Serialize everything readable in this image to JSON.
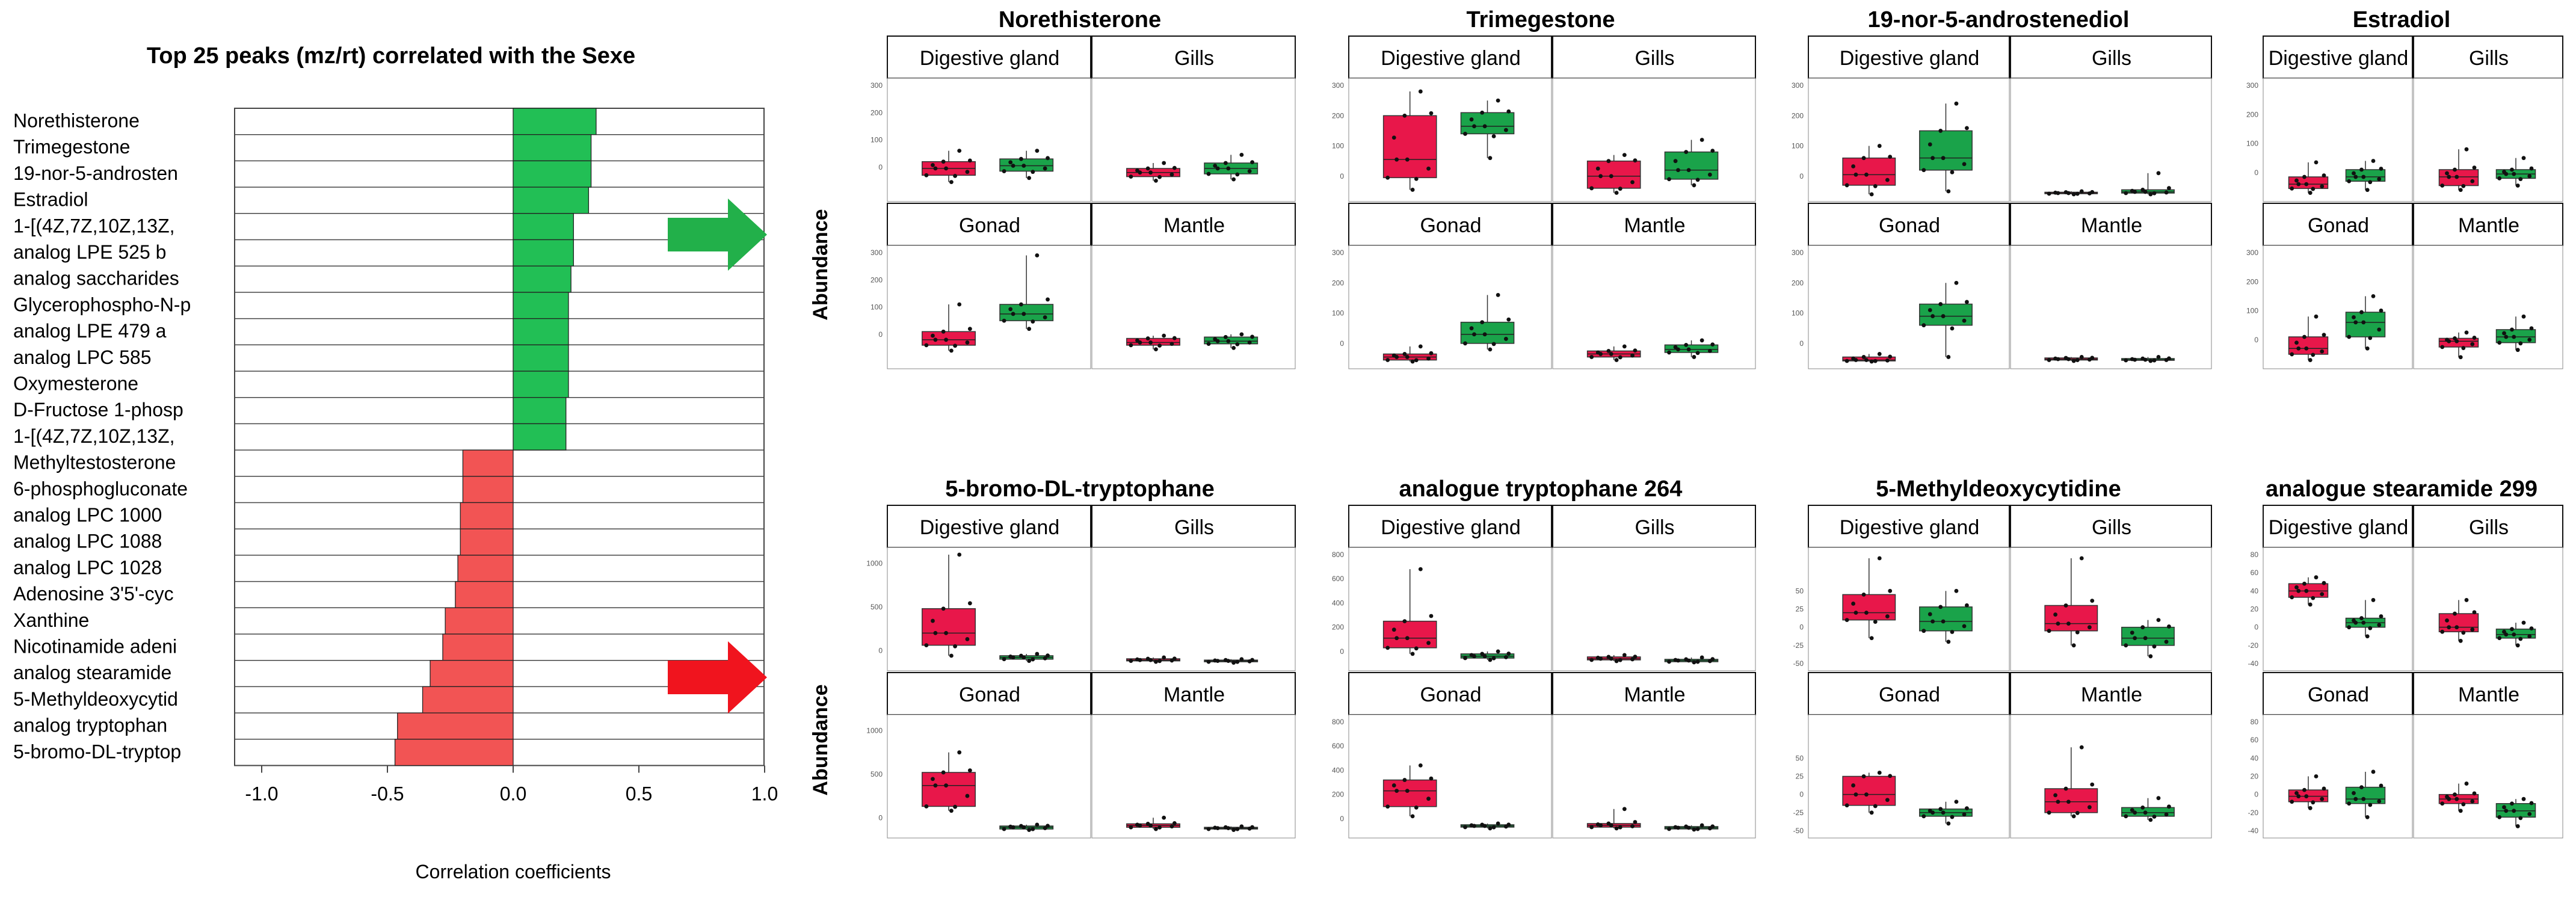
{
  "figure": {
    "ylabel": "Abundance",
    "group_colors": {
      "female": "#e8174a",
      "male": "#1aa34a"
    },
    "arrow_colors": {
      "up": "#22b04a",
      "down": "#f0141e"
    }
  },
  "chart_data": [
    {
      "type": "bar",
      "orientation": "horizontal",
      "title": "Top 25 peaks (mz/rt) correlated with the Sexe",
      "xlabel": "Correlation coefficients",
      "xlim": [
        -1.0,
        1.0
      ],
      "xticks": [
        "-1.0",
        "-0.5",
        "0.0",
        "0.5",
        "1.0"
      ],
      "colors": {
        "positive": "#22bf55",
        "negative": "#f25454"
      },
      "categories": [
        "Norethisterone",
        "Trimegestone",
        "19-nor-5-androsten",
        "Estradiol",
        "1-[(4Z,7Z,10Z,13Z,",
        "analog LPE 525 b",
        "analog saccharides",
        "Glycerophospho-N-p",
        "analog LPE 479 a",
        "analog LPC 585",
        "Oxymesterone",
        "D-Fructose 1-phosp",
        "1-[(4Z,7Z,10Z,13Z,",
        "Methyltestosterone",
        "6-phosphogluconate",
        "analog LPC 1000",
        "analog LPC 1088",
        "analog LPC 1028",
        "Adenosine 3'5'-cyc",
        "Xanthine",
        "Nicotinamide adeni",
        "analog stearamide",
        "5-Methyldeoxycytid",
        "analog tryptophan",
        "5-bromo-DL-tryptop"
      ],
      "values": [
        0.33,
        0.31,
        0.31,
        0.3,
        0.24,
        0.24,
        0.23,
        0.22,
        0.22,
        0.22,
        0.22,
        0.21,
        0.21,
        -0.2,
        -0.2,
        -0.21,
        -0.21,
        -0.22,
        -0.23,
        -0.27,
        -0.28,
        -0.33,
        -0.36,
        -0.46,
        -0.47
      ]
    },
    {
      "type": "box",
      "title": "Norethisterone",
      "ylim": [
        -100,
        300
      ],
      "yticks": [
        0,
        100,
        200,
        300
      ],
      "panels": [
        "Digestive gland",
        "Gills",
        "Gonad",
        "Mantle"
      ],
      "series": [
        {
          "panel": "Digestive gland",
          "group": "female",
          "q1": -30,
          "median": -5,
          "q3": 20,
          "lo": -55,
          "hi": 60
        },
        {
          "panel": "Digestive gland",
          "group": "male",
          "q1": -15,
          "median": 5,
          "q3": 30,
          "lo": -40,
          "hi": 60
        },
        {
          "panel": "Gills",
          "group": "female",
          "q1": -35,
          "median": -20,
          "q3": -5,
          "lo": -50,
          "hi": 15
        },
        {
          "panel": "Gills",
          "group": "male",
          "q1": -25,
          "median": -5,
          "q3": 15,
          "lo": -45,
          "hi": 45
        },
        {
          "panel": "Gonad",
          "group": "female",
          "q1": -40,
          "median": -20,
          "q3": 10,
          "lo": -60,
          "hi": 110
        },
        {
          "panel": "Gonad",
          "group": "male",
          "q1": 50,
          "median": 75,
          "q3": 110,
          "lo": 20,
          "hi": 290
        },
        {
          "panel": "Mantle",
          "group": "female",
          "q1": -40,
          "median": -30,
          "q3": -15,
          "lo": -55,
          "hi": -5
        },
        {
          "panel": "Mantle",
          "group": "male",
          "q1": -35,
          "median": -25,
          "q3": -10,
          "lo": -50,
          "hi": 0
        }
      ]
    },
    {
      "type": "box",
      "title": "Trimegestone",
      "ylim": [
        -60,
        300
      ],
      "yticks": [
        0,
        100,
        200,
        300
      ],
      "panels": [
        "Digestive gland",
        "Gills",
        "Gonad",
        "Mantle"
      ],
      "series": [
        {
          "panel": "Digestive gland",
          "group": "female",
          "q1": -5,
          "median": 55,
          "q3": 200,
          "lo": -45,
          "hi": 280
        },
        {
          "panel": "Digestive gland",
          "group": "male",
          "q1": 140,
          "median": 165,
          "q3": 210,
          "lo": 60,
          "hi": 250
        },
        {
          "panel": "Gills",
          "group": "female",
          "q1": -40,
          "median": 0,
          "q3": 50,
          "lo": -55,
          "hi": 70
        },
        {
          "panel": "Gills",
          "group": "male",
          "q1": -10,
          "median": 20,
          "q3": 80,
          "lo": -30,
          "hi": 120
        },
        {
          "panel": "Gonad",
          "group": "female",
          "q1": -55,
          "median": -45,
          "q3": -35,
          "lo": -60,
          "hi": -10
        },
        {
          "panel": "Gonad",
          "group": "male",
          "q1": 0,
          "median": 30,
          "q3": 70,
          "lo": -20,
          "hi": 160
        },
        {
          "panel": "Mantle",
          "group": "female",
          "q1": -45,
          "median": -35,
          "q3": -25,
          "lo": -55,
          "hi": -10
        },
        {
          "panel": "Mantle",
          "group": "male",
          "q1": -30,
          "median": -20,
          "q3": -5,
          "lo": -45,
          "hi": 10
        }
      ]
    },
    {
      "type": "box",
      "title": "19-nor-5-androstenediol",
      "ylim": [
        -60,
        300
      ],
      "yticks": [
        0,
        100,
        200,
        300
      ],
      "panels": [
        "Digestive gland",
        "Gills",
        "Gonad",
        "Mantle"
      ],
      "series": [
        {
          "panel": "Digestive gland",
          "group": "female",
          "q1": -30,
          "median": 5,
          "q3": 60,
          "lo": -60,
          "hi": 100
        },
        {
          "panel": "Digestive gland",
          "group": "male",
          "q1": 20,
          "median": 60,
          "q3": 150,
          "lo": -50,
          "hi": 240
        },
        {
          "panel": "Gills",
          "group": "female",
          "q1": -58,
          "median": -56,
          "q3": -53,
          "lo": -60,
          "hi": -50
        },
        {
          "panel": "Gills",
          "group": "male",
          "q1": -56,
          "median": -52,
          "q3": -45,
          "lo": -60,
          "hi": 10
        },
        {
          "panel": "Gonad",
          "group": "female",
          "q1": -58,
          "median": -55,
          "q3": -45,
          "lo": -60,
          "hi": -35
        },
        {
          "panel": "Gonad",
          "group": "male",
          "q1": 60,
          "median": 90,
          "q3": 130,
          "lo": -45,
          "hi": 200
        },
        {
          "panel": "Mantle",
          "group": "female",
          "q1": -55,
          "median": -52,
          "q3": -48,
          "lo": -58,
          "hi": -45
        },
        {
          "panel": "Mantle",
          "group": "male",
          "q1": -56,
          "median": -54,
          "q3": -50,
          "lo": -58,
          "hi": -45
        }
      ]
    },
    {
      "type": "box",
      "title": "Estradiol",
      "ylim": [
        -75,
        300
      ],
      "yticks": [
        0,
        100,
        200,
        300
      ],
      "panels": [
        "Digestive gland",
        "Gills",
        "Gonad",
        "Mantle"
      ],
      "series": [
        {
          "panel": "Digestive gland",
          "group": "female",
          "q1": -55,
          "median": -40,
          "q3": -15,
          "lo": -70,
          "hi": 35
        },
        {
          "panel": "Digestive gland",
          "group": "male",
          "q1": -30,
          "median": -15,
          "q3": 10,
          "lo": -60,
          "hi": 40
        },
        {
          "panel": "Gills",
          "group": "female",
          "q1": -45,
          "median": -15,
          "q3": 10,
          "lo": -60,
          "hi": 80
        },
        {
          "panel": "Gills",
          "group": "male",
          "q1": -20,
          "median": -5,
          "q3": 10,
          "lo": -45,
          "hi": 50
        },
        {
          "panel": "Gonad",
          "group": "female",
          "q1": -50,
          "median": -30,
          "q3": 10,
          "lo": -70,
          "hi": 80
        },
        {
          "panel": "Gonad",
          "group": "male",
          "q1": 10,
          "median": 60,
          "q3": 95,
          "lo": -30,
          "hi": 150
        },
        {
          "panel": "Mantle",
          "group": "female",
          "q1": -25,
          "median": -5,
          "q3": 5,
          "lo": -60,
          "hi": 25
        },
        {
          "panel": "Mantle",
          "group": "male",
          "q1": -10,
          "median": 10,
          "q3": 35,
          "lo": -35,
          "hi": 80
        }
      ]
    },
    {
      "type": "box",
      "title": "5-bromo-DL-tryptophane",
      "ylim": [
        -150,
        1100
      ],
      "yticks": [
        0,
        500,
        1000
      ],
      "panels": [
        "Digestive gland",
        "Gills",
        "Gonad",
        "Mantle"
      ],
      "series": [
        {
          "panel": "Digestive gland",
          "group": "female",
          "q1": 60,
          "median": 200,
          "q3": 480,
          "lo": -60,
          "hi": 1100
        },
        {
          "panel": "Digestive gland",
          "group": "male",
          "q1": -100,
          "median": -80,
          "q3": -60,
          "lo": -120,
          "hi": -40
        },
        {
          "panel": "Gills",
          "group": "female",
          "q1": -120,
          "median": -110,
          "q3": -95,
          "lo": -130,
          "hi": -80
        },
        {
          "panel": "Gills",
          "group": "male",
          "q1": -130,
          "median": -120,
          "q3": -110,
          "lo": -140,
          "hi": -100
        },
        {
          "panel": "Gonad",
          "group": "female",
          "q1": 130,
          "median": 370,
          "q3": 520,
          "lo": 80,
          "hi": 750
        },
        {
          "panel": "Gonad",
          "group": "male",
          "q1": -130,
          "median": -110,
          "q3": -95,
          "lo": -140,
          "hi": -80
        },
        {
          "panel": "Mantle",
          "group": "female",
          "q1": -110,
          "median": -90,
          "q3": -70,
          "lo": -130,
          "hi": 0
        },
        {
          "panel": "Mantle",
          "group": "male",
          "q1": -130,
          "median": -120,
          "q3": -110,
          "lo": -140,
          "hi": -100
        }
      ]
    },
    {
      "type": "box",
      "title": "analogue tryptophane 264",
      "ylim": [
        -100,
        800
      ],
      "yticks": [
        0,
        200,
        400,
        600,
        800
      ],
      "panels": [
        "Digestive gland",
        "Gills",
        "Gonad",
        "Mantle"
      ],
      "series": [
        {
          "panel": "Digestive gland",
          "group": "female",
          "q1": 30,
          "median": 110,
          "q3": 250,
          "lo": -20,
          "hi": 680
        },
        {
          "panel": "Digestive gland",
          "group": "male",
          "q1": -55,
          "median": -40,
          "q3": -20,
          "lo": -70,
          "hi": 0
        },
        {
          "panel": "Gills",
          "group": "female",
          "q1": -70,
          "median": -60,
          "q3": -45,
          "lo": -80,
          "hi": -30
        },
        {
          "panel": "Gills",
          "group": "male",
          "q1": -85,
          "median": -75,
          "q3": -65,
          "lo": -90,
          "hi": -50
        },
        {
          "panel": "Gonad",
          "group": "female",
          "q1": 100,
          "median": 230,
          "q3": 320,
          "lo": 20,
          "hi": 440
        },
        {
          "panel": "Gonad",
          "group": "male",
          "q1": -70,
          "median": -60,
          "q3": -50,
          "lo": -80,
          "hi": -40
        },
        {
          "panel": "Mantle",
          "group": "female",
          "q1": -70,
          "median": -55,
          "q3": -40,
          "lo": -80,
          "hi": 80
        },
        {
          "panel": "Mantle",
          "group": "male",
          "q1": -85,
          "median": -75,
          "q3": -65,
          "lo": -90,
          "hi": -55
        }
      ]
    },
    {
      "type": "box",
      "title": "5-Methyldeoxycytidine",
      "ylim": [
        -50,
        100
      ],
      "yticks": [
        -50,
        -25,
        0,
        25,
        50
      ],
      "panels": [
        "Digestive gland",
        "Gills",
        "Gonad",
        "Mantle"
      ],
      "series": [
        {
          "panel": "Digestive gland",
          "group": "female",
          "q1": 10,
          "median": 20,
          "q3": 45,
          "lo": -15,
          "hi": 95
        },
        {
          "panel": "Digestive gland",
          "group": "male",
          "q1": -5,
          "median": 8,
          "q3": 28,
          "lo": -20,
          "hi": 50
        },
        {
          "panel": "Gills",
          "group": "female",
          "q1": -5,
          "median": 5,
          "q3": 30,
          "lo": -25,
          "hi": 95
        },
        {
          "panel": "Gills",
          "group": "male",
          "q1": -25,
          "median": -15,
          "q3": 0,
          "lo": -40,
          "hi": 10
        },
        {
          "panel": "Gonad",
          "group": "female",
          "q1": -15,
          "median": 0,
          "q3": 25,
          "lo": -25,
          "hi": 30
        },
        {
          "panel": "Gonad",
          "group": "male",
          "q1": -30,
          "median": -25,
          "q3": -20,
          "lo": -40,
          "hi": -10
        },
        {
          "panel": "Mantle",
          "group": "female",
          "q1": -25,
          "median": -10,
          "q3": 8,
          "lo": -30,
          "hi": 65
        },
        {
          "panel": "Mantle",
          "group": "male",
          "q1": -30,
          "median": -25,
          "q3": -18,
          "lo": -35,
          "hi": -5
        }
      ]
    },
    {
      "type": "box",
      "title": "analogue stearamide 299",
      "ylim": [
        -40,
        80
      ],
      "yticks": [
        -40,
        -20,
        0,
        20,
        40,
        60,
        80
      ],
      "panels": [
        "Digestive gland",
        "Gills",
        "Gonad",
        "Mantle"
      ],
      "series": [
        {
          "panel": "Digestive gland",
          "group": "female",
          "q1": 33,
          "median": 40,
          "q3": 48,
          "lo": 25,
          "hi": 55
        },
        {
          "panel": "Digestive gland",
          "group": "male",
          "q1": 0,
          "median": 5,
          "q3": 10,
          "lo": -10,
          "hi": 30
        },
        {
          "panel": "Gills",
          "group": "female",
          "q1": -5,
          "median": 0,
          "q3": 15,
          "lo": -15,
          "hi": 30
        },
        {
          "panel": "Gills",
          "group": "male",
          "q1": -12,
          "median": -8,
          "q3": -2,
          "lo": -20,
          "hi": 5
        },
        {
          "panel": "Gonad",
          "group": "female",
          "q1": -8,
          "median": -2,
          "q3": 5,
          "lo": -15,
          "hi": 20
        },
        {
          "panel": "Gonad",
          "group": "male",
          "q1": -10,
          "median": -5,
          "q3": 8,
          "lo": -25,
          "hi": 25
        },
        {
          "panel": "Mantle",
          "group": "female",
          "q1": -10,
          "median": -5,
          "q3": 0,
          "lo": -18,
          "hi": 12
        },
        {
          "panel": "Mantle",
          "group": "male",
          "q1": -25,
          "median": -18,
          "q3": -10,
          "lo": -35,
          "hi": -5
        }
      ]
    }
  ]
}
